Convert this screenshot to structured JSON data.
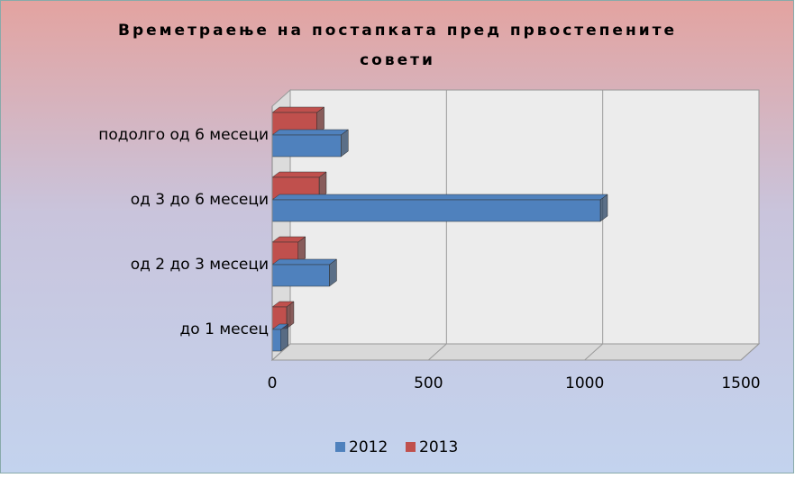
{
  "chart_data": {
    "type": "bar3d_horizontal",
    "title": "Времетраење на постапката пред првостепените совети",
    "categories": [
      "до 1 месец",
      "од 2 до 3 месеци",
      "од 3 до 6 месеци",
      "подолго од 6 месеци"
    ],
    "series": [
      {
        "name": "2012",
        "color": "#4f81bd",
        "values": [
          28,
          183,
          1050,
          220
        ]
      },
      {
        "name": "2013",
        "color": "#c0504d",
        "values": [
          46,
          83,
          150,
          143
        ]
      }
    ],
    "xlim": [
      0,
      1500
    ],
    "xticks": [
      0,
      500,
      1000,
      1500
    ],
    "grid": true,
    "legend": "bottom"
  }
}
